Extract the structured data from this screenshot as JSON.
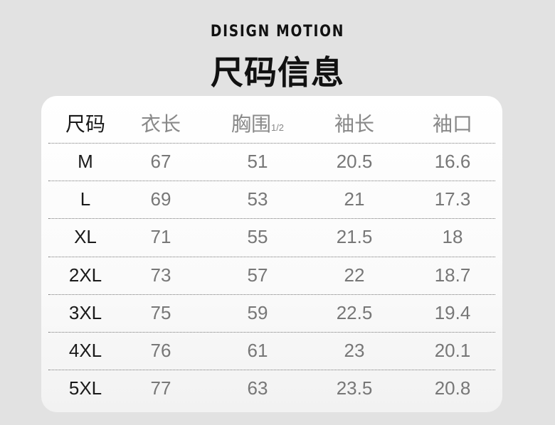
{
  "brand": "DISIGN MOTION",
  "title": "尺码信息",
  "columns": [
    {
      "label": "尺码",
      "suffix": ""
    },
    {
      "label": "衣长",
      "suffix": ""
    },
    {
      "label": "胸围",
      "suffix": "1/2"
    },
    {
      "label": "袖长",
      "suffix": ""
    },
    {
      "label": "袖口",
      "suffix": ""
    }
  ],
  "rows": [
    [
      "M",
      "67",
      "51",
      "20.5",
      "16.6"
    ],
    [
      "L",
      "69",
      "53",
      "21",
      "17.3"
    ],
    [
      "XL",
      "71",
      "55",
      "21.5",
      "18"
    ],
    [
      "2XL",
      "73",
      "57",
      "22",
      "18.7"
    ],
    [
      "3XL",
      "75",
      "59",
      "22.5",
      "19.4"
    ],
    [
      "4XL",
      "76",
      "61",
      "23",
      "20.1"
    ],
    [
      "5XL",
      "77",
      "63",
      "23.5",
      "20.8"
    ]
  ]
}
